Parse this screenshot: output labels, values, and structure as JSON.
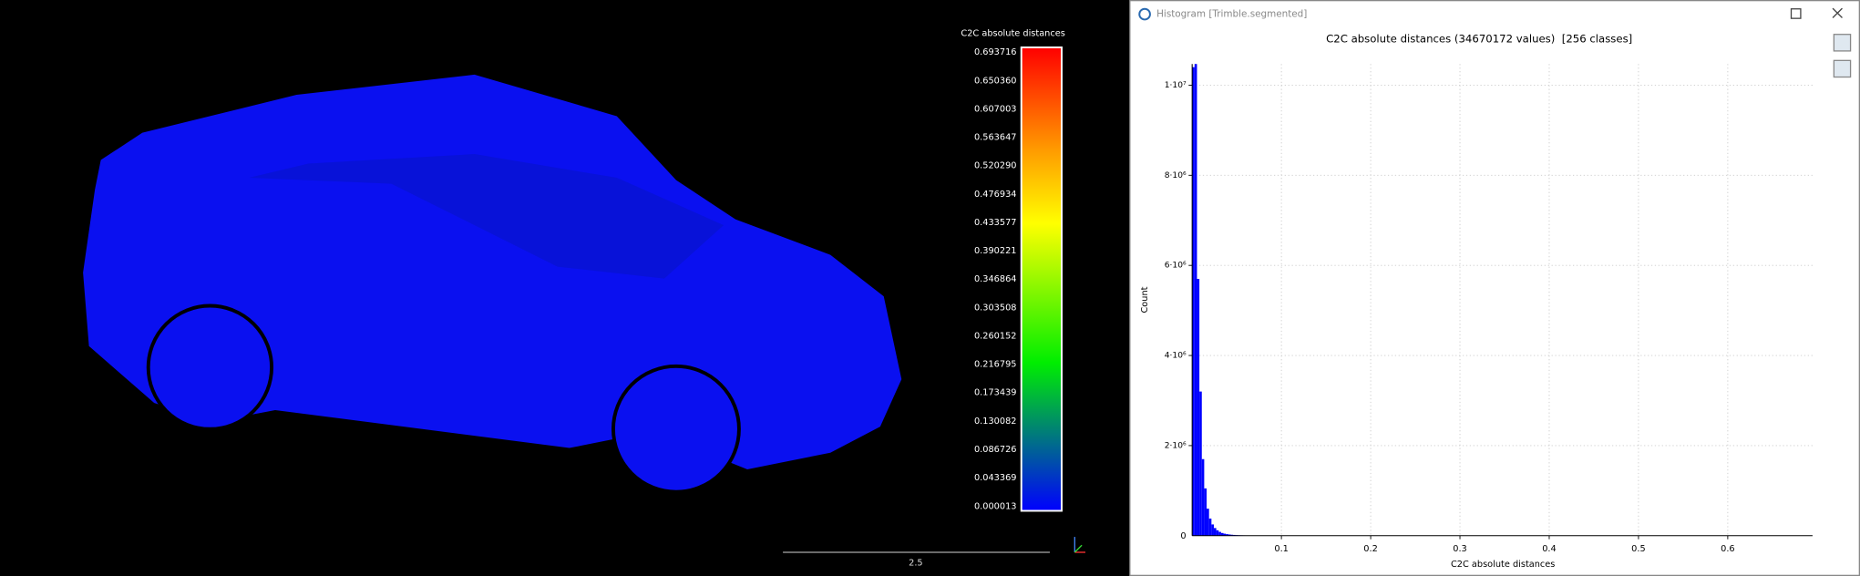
{
  "viewer": {
    "color_scale": {
      "title": "C2C absolute distances",
      "labels": [
        "0.693716",
        "0.650360",
        "0.607003",
        "0.563647",
        "0.520290",
        "0.476934",
        "0.433577",
        "0.390221",
        "0.346864",
        "0.303508",
        "0.260152",
        "0.216795",
        "0.173439",
        "0.130082",
        "0.086726",
        "0.043369",
        "0.000013"
      ]
    },
    "scale_bar": "2.5"
  },
  "histogram_window": {
    "title": "Histogram [Trimble.segmented]",
    "chart_data": {
      "type": "histogram",
      "title": "C2C absolute distances (34670172 values)  [256 classes]",
      "xlabel": "C2C absolute distances",
      "ylabel": "Count",
      "color": "#0000ff",
      "grid": true,
      "bins": [
        0,
        0.0027,
        0.0054,
        0.0081,
        0.0108,
        0.0135,
        0.0162,
        0.0189,
        0.0216,
        0.0243,
        0.027,
        0.0297,
        0.0324,
        0.0351,
        0.0378,
        0.0405,
        0.0432,
        0.0459,
        0.0486,
        0.0513,
        0.054,
        0.0567,
        0.0594,
        0.0621,
        0.0648
      ],
      "values": [
        10400000,
        10500000,
        5700000,
        3200000,
        1700000,
        1050000,
        600000,
        380000,
        250000,
        170000,
        120000,
        85000,
        60000,
        45000,
        35000,
        27000,
        21000,
        17000,
        13000,
        10000,
        8000,
        6500,
        5000,
        4000
      ],
      "xlim": [
        0,
        0.695
      ],
      "xticks": [
        0.1,
        0.2,
        0.3,
        0.4,
        0.5,
        0.6
      ],
      "ylim": [
        0,
        10470000
      ],
      "yticks": [
        {
          "value": 2000000,
          "label": "2·10⁶"
        },
        {
          "value": 4000000,
          "label": "4·10⁶"
        },
        {
          "value": 6000000,
          "label": "6·10⁶"
        },
        {
          "value": 8000000,
          "label": "8·10⁶"
        },
        {
          "value": 10000000,
          "label": "1·10⁷"
        }
      ]
    }
  }
}
